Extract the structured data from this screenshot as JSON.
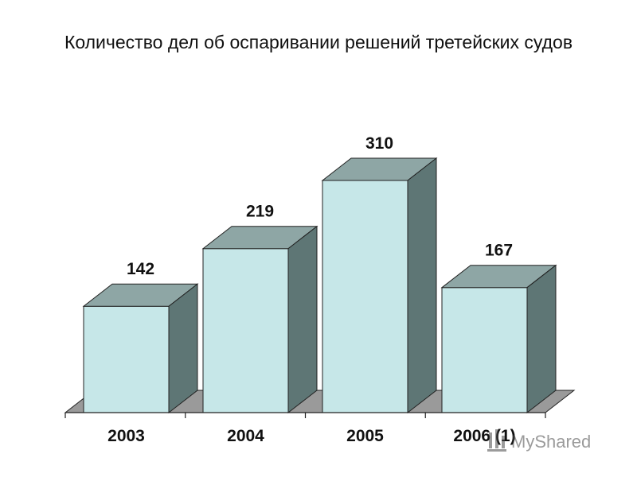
{
  "chart_data": {
    "type": "bar",
    "title": "Количество дел об оспаривании решений третейских судов",
    "xlabel": "",
    "ylabel": "",
    "categories": [
      "2003",
      "2004",
      "2005",
      "2006 (1)"
    ],
    "values": [
      142,
      219,
      310,
      167
    ],
    "ylim": [
      0,
      310
    ],
    "style": "3d-columns",
    "grid": false,
    "legend": "none",
    "colors": {
      "front": "#c6e7e8",
      "top": "#8ea6a5",
      "side": "#5e7675",
      "floor": "#9a9a9a",
      "edge": "#222222"
    }
  },
  "watermark": {
    "text": "MyShared"
  }
}
